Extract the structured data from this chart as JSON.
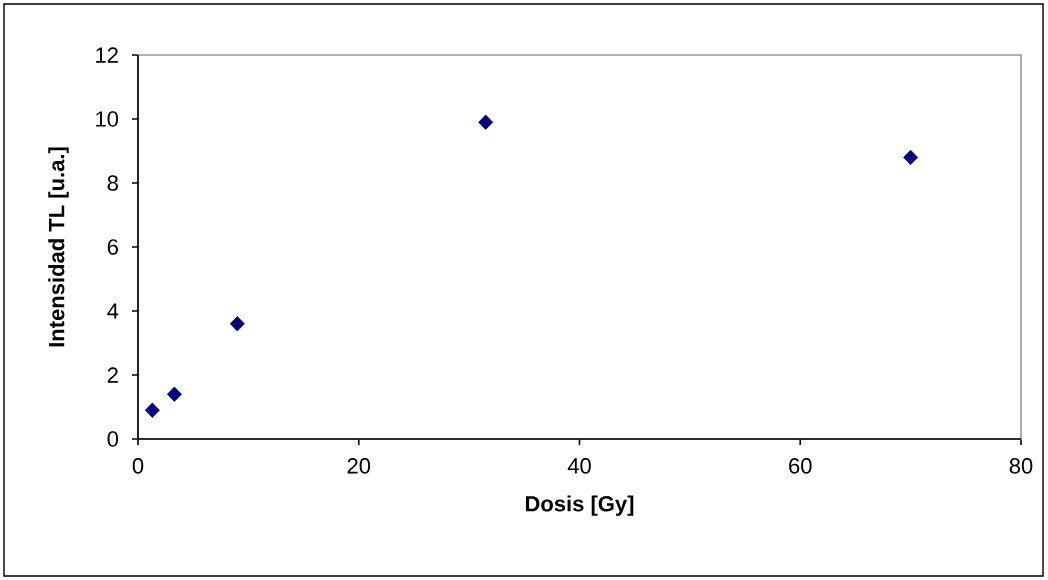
{
  "chart_data": {
    "type": "scatter",
    "xlabel": "Dosis [Gy]",
    "ylabel": "Intensidad TL [u.a.]",
    "x": [
      1.3,
      3.3,
      9,
      31.5,
      70
    ],
    "series": [
      {
        "color": "#000080",
        "values": [
          0.9,
          1.4,
          3.6,
          9.9,
          8.8
        ]
      }
    ],
    "xlim": [
      0,
      80
    ],
    "ylim": [
      0,
      12
    ],
    "xticks": [
      0,
      20,
      40,
      60,
      80
    ],
    "yticks": [
      0,
      2,
      4,
      6,
      8,
      10,
      12
    ],
    "marker": "diamond",
    "grid": false
  }
}
